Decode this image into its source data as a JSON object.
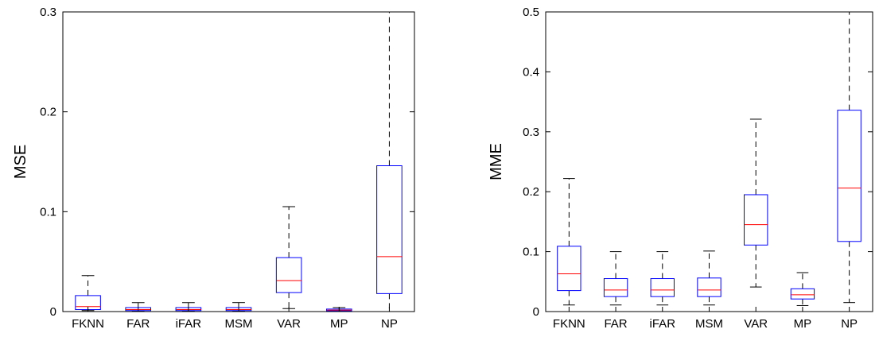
{
  "chart_data": [
    {
      "type": "box",
      "ylabel": "MSE",
      "xlabel": "",
      "ylim": [
        0,
        0.3
      ],
      "yticks": [
        "0",
        "0.1",
        "0.2",
        "0.3"
      ],
      "categories": [
        "FKNN",
        "FAR",
        "iFAR",
        "MSM",
        "VAR",
        "MP",
        "NP"
      ],
      "boxes": [
        {
          "label": "FKNN",
          "whisker_low": 0.001,
          "q1": 0.002,
          "median": 0.005,
          "q3": 0.016,
          "whisker_high": 0.036
        },
        {
          "label": "FAR",
          "whisker_low": 0.0005,
          "q1": 0.001,
          "median": 0.002,
          "q3": 0.004,
          "whisker_high": 0.009
        },
        {
          "label": "iFAR",
          "whisker_low": 0.0005,
          "q1": 0.001,
          "median": 0.002,
          "q3": 0.004,
          "whisker_high": 0.009
        },
        {
          "label": "MSM",
          "whisker_low": 0.0005,
          "q1": 0.001,
          "median": 0.002,
          "q3": 0.004,
          "whisker_high": 0.009
        },
        {
          "label": "VAR",
          "whisker_low": 0.003,
          "q1": 0.019,
          "median": 0.031,
          "q3": 0.054,
          "whisker_high": 0.105
        },
        {
          "label": "MP",
          "whisker_low": 0.0003,
          "q1": 0.0008,
          "median": 0.0015,
          "q3": 0.0025,
          "whisker_high": 0.004
        },
        {
          "label": "NP",
          "whisker_low": 0.0,
          "q1": 0.018,
          "median": 0.055,
          "q3": 0.146,
          "whisker_high": 0.3
        }
      ]
    },
    {
      "type": "box",
      "ylabel": "MME",
      "xlabel": "",
      "ylim": [
        0,
        0.5
      ],
      "yticks": [
        "0",
        "0.1",
        "0.2",
        "0.3",
        "0.4",
        "0.5"
      ],
      "categories": [
        "FKNN",
        "FAR",
        "iFAR",
        "MSM",
        "VAR",
        "MP",
        "NP"
      ],
      "boxes": [
        {
          "label": "FKNN",
          "whisker_low": 0.011,
          "q1": 0.035,
          "median": 0.063,
          "q3": 0.109,
          "whisker_high": 0.222
        },
        {
          "label": "FAR",
          "whisker_low": 0.011,
          "q1": 0.025,
          "median": 0.036,
          "q3": 0.055,
          "whisker_high": 0.1
        },
        {
          "label": "iFAR",
          "whisker_low": 0.011,
          "q1": 0.025,
          "median": 0.036,
          "q3": 0.055,
          "whisker_high": 0.1
        },
        {
          "label": "MSM",
          "whisker_low": 0.011,
          "q1": 0.025,
          "median": 0.036,
          "q3": 0.056,
          "whisker_high": 0.101
        },
        {
          "label": "VAR",
          "whisker_low": 0.041,
          "q1": 0.111,
          "median": 0.145,
          "q3": 0.195,
          "whisker_high": 0.321
        },
        {
          "label": "MP",
          "whisker_low": 0.01,
          "q1": 0.021,
          "median": 0.028,
          "q3": 0.038,
          "whisker_high": 0.065
        },
        {
          "label": "NP",
          "whisker_low": 0.015,
          "q1": 0.117,
          "median": 0.206,
          "q3": 0.336,
          "whisker_high": 0.5
        }
      ]
    }
  ],
  "colors": {
    "box": "#0000ff",
    "median": "#ff0000",
    "whisker": "#000000",
    "axis": "#000000"
  }
}
